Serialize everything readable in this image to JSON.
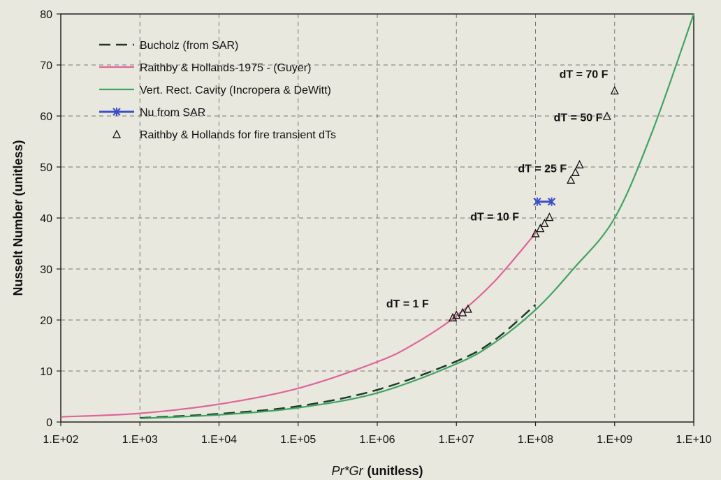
{
  "chart_data": {
    "type": "line",
    "x_scale": "log",
    "xlim": [
      "1.E+02",
      "1.E+10"
    ],
    "ylim": [
      0,
      80
    ],
    "grid": true,
    "legend_position": "top-left",
    "xlabel_italic": "Pr*Gr",
    "xlabel_rest": "(unitless)",
    "ylabel": "Nusselt Number (unitless)",
    "x_ticks": [
      "1.E+02",
      "1.E+03",
      "1.E+04",
      "1.E+05",
      "1.E+06",
      "1.E+07",
      "1.E+08",
      "1.E+09",
      "1.E+10"
    ],
    "y_ticks": [
      "0",
      "10",
      "20",
      "30",
      "40",
      "50",
      "60",
      "70",
      "80"
    ],
    "series": [
      {
        "name": "Bucholz (from SAR)",
        "color": "#1f3a2a",
        "style": "dashed",
        "points": [
          [
            1000,
            0.8
          ],
          [
            10000,
            1.6
          ],
          [
            100000,
            3.1
          ],
          [
            1000000,
            6.3
          ],
          [
            10000000,
            11.9
          ],
          [
            30000000,
            16.0
          ],
          [
            100000000,
            23.0
          ]
        ]
      },
      {
        "name": "Raithby & Hollands-1975 - (Guyer)",
        "color": "#e0649a",
        "style": "solid",
        "points": [
          [
            100,
            1.0
          ],
          [
            1000,
            1.7
          ],
          [
            10000,
            3.5
          ],
          [
            100000,
            6.6
          ],
          [
            1000000,
            11.8
          ],
          [
            3000000,
            15.4
          ],
          [
            10000000,
            20.8
          ],
          [
            30000000,
            27.5
          ],
          [
            100000000,
            37.0
          ]
        ]
      },
      {
        "name": "Vert. Rect. Cavity (Incropera & DeWitt)",
        "color": "#3fa463",
        "style": "solid",
        "points": [
          [
            1000,
            0.7
          ],
          [
            10000,
            1.4
          ],
          [
            100000,
            2.8
          ],
          [
            1000000,
            5.7
          ],
          [
            10000000,
            11.4
          ],
          [
            30000000,
            15.5
          ],
          [
            100000000,
            22.0
          ],
          [
            300000000,
            30.0
          ],
          [
            1000000000,
            40.0
          ],
          [
            3000000000,
            57.0
          ],
          [
            10000000000,
            80.0
          ]
        ]
      },
      {
        "name": "Nu from SAR",
        "color": "#3a4fc8",
        "style": "marker-line",
        "points": [
          [
            105000000,
            43.2
          ],
          [
            160000000,
            43.2
          ]
        ]
      },
      {
        "name": "Raithby & Hollands for fire transient dTs",
        "color": "#111111",
        "style": "triangles",
        "points": [
          [
            9000000,
            20.5
          ],
          [
            10000000,
            21.0
          ],
          [
            12000000,
            21.5
          ],
          [
            14000000,
            22.2
          ],
          [
            100000000,
            37.0
          ],
          [
            115000000,
            38.0
          ],
          [
            130000000,
            39.0
          ],
          [
            150000000,
            40.2
          ],
          [
            280000000,
            47.5
          ],
          [
            320000000,
            49.0
          ],
          [
            360000000,
            50.5
          ],
          [
            800000000,
            60.0
          ],
          [
            1000000000,
            65.0
          ]
        ]
      }
    ],
    "annotations": [
      {
        "text": "dT = 70 F",
        "x": 200000000,
        "y": 67.5
      },
      {
        "text": "dT = 50 F",
        "x": 170000000,
        "y": 59.0
      },
      {
        "text": "dT = 25 F",
        "x": 60000000,
        "y": 49.0
      },
      {
        "text": "dT = 10 F",
        "x": 15000000,
        "y": 39.5
      },
      {
        "text": "dT = 1 F",
        "x": 1300000,
        "y": 22.5
      }
    ]
  }
}
